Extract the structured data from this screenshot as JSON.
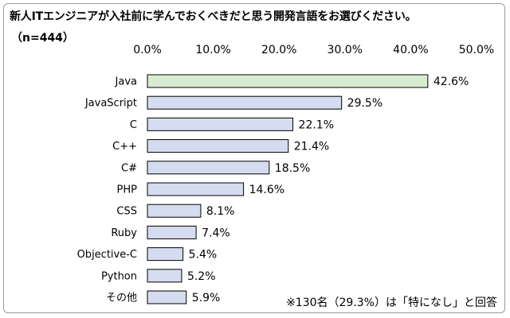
{
  "title": "新人ITエンジニアが入社前に学んでおくべきだと思う開発言語をお選びください。",
  "sample_size": "（n=444）",
  "note": "※130名（29.3%）は「特になし」と回答",
  "colors": {
    "highlight_bar": "#d8ecd1",
    "bar": "#d6dcef",
    "bar_stroke": "#000000",
    "border": "#9a9a9a"
  },
  "chart_data": {
    "type": "bar",
    "orientation": "horizontal",
    "categories": [
      "Java",
      "JavaScript",
      "C",
      "C++",
      "C#",
      "PHP",
      "CSS",
      "Ruby",
      "Objective-C",
      "Python",
      "その他"
    ],
    "values": [
      42.6,
      29.5,
      22.1,
      21.4,
      18.5,
      14.6,
      8.1,
      7.4,
      5.4,
      5.2,
      5.9
    ],
    "data_labels": [
      "42.6%",
      "29.5%",
      "22.1%",
      "21.4%",
      "18.5%",
      "14.6%",
      "8.1%",
      "7.4%",
      "5.4%",
      "5.2%",
      "5.9%"
    ],
    "xlim": [
      0,
      50
    ],
    "xticks": [
      "0.0%",
      "10.0%",
      "20.0%",
      "30.0%",
      "40.0%",
      "50.0%"
    ],
    "xtick_values": [
      0,
      10,
      20,
      30,
      40,
      50
    ],
    "axis_position": "top",
    "grid": false,
    "legend": false,
    "highlighted_category": "Java"
  }
}
